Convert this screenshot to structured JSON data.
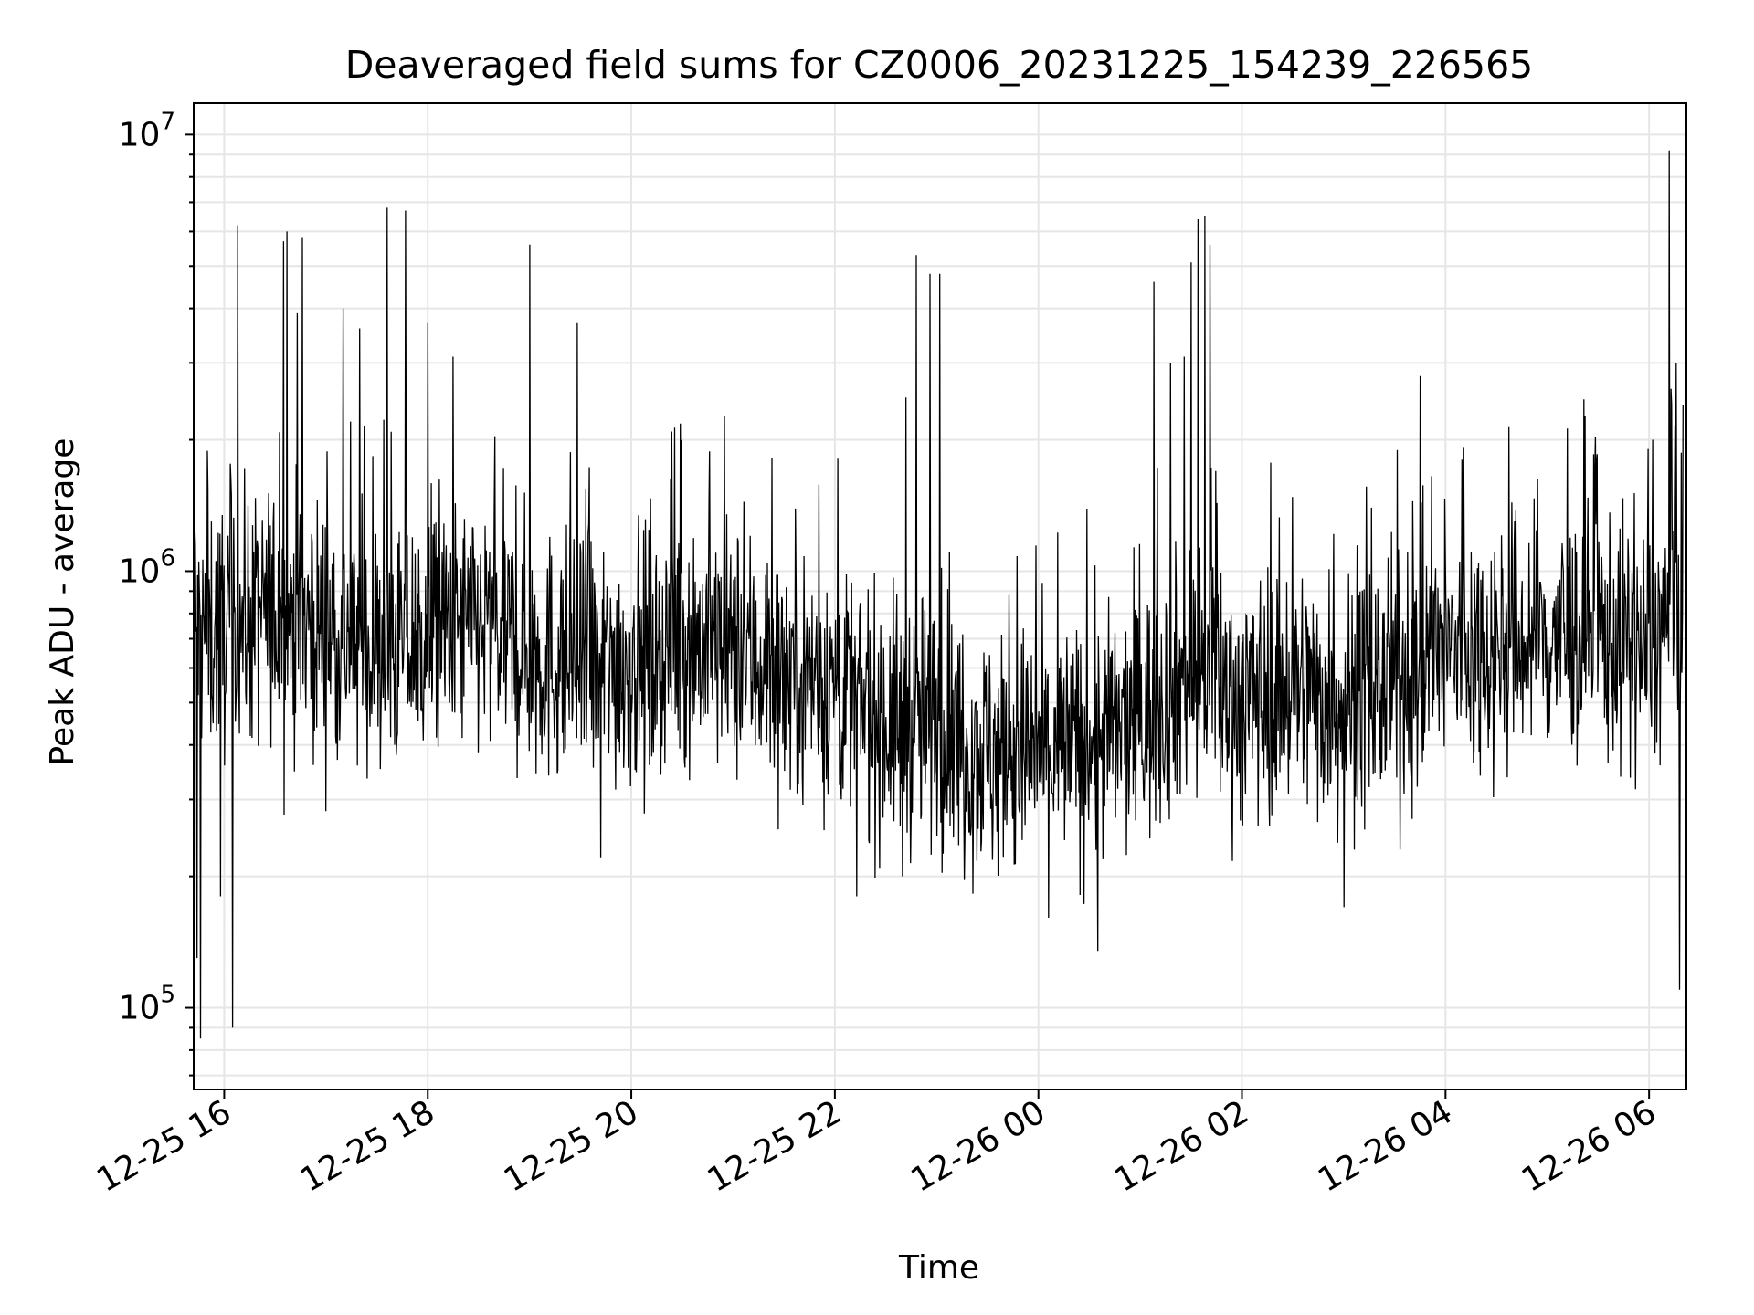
{
  "chart_data": {
    "type": "line",
    "title": "Deaveraged field sums for CZ0006_20231225_154239_226565",
    "xlabel": "Time",
    "ylabel": "Peak ADU - average",
    "x_start": "2023-12-25 15:42:39",
    "x_end": "2023-12-26 06:20:00",
    "xlim": [
      "2023-12-25 15:42",
      "2023-12-26 06:22"
    ],
    "ylim": [
      65000,
      11800000
    ],
    "yscale": "log",
    "grid": true,
    "line_color": "#000000",
    "grid_color": "#e6e6e6",
    "x_ticks": [
      {
        "label": "12-25 16",
        "time": "2023-12-25 16:00"
      },
      {
        "label": "12-25 18",
        "time": "2023-12-25 18:00"
      },
      {
        "label": "12-25 20",
        "time": "2023-12-25 20:00"
      },
      {
        "label": "12-25 22",
        "time": "2023-12-25 22:00"
      },
      {
        "label": "12-26 00",
        "time": "2023-12-26 00:00"
      },
      {
        "label": "12-26 02",
        "time": "2023-12-26 02:00"
      },
      {
        "label": "12-26 04",
        "time": "2023-12-26 04:00"
      },
      {
        "label": "12-26 06",
        "time": "2023-12-26 06:00"
      }
    ],
    "y_ticks": [
      {
        "base": "10",
        "exp": "5",
        "value": 100000
      },
      {
        "base": "10",
        "exp": "6",
        "value": 1000000
      },
      {
        "base": "10",
        "exp": "7",
        "value": 10000000
      }
    ],
    "series": [
      {
        "baseline": [
          [
            "2023-12-25 15:43",
            700000
          ],
          [
            "2023-12-25 16:00",
            750000
          ],
          [
            "2023-12-25 16:30",
            800000
          ],
          [
            "2023-12-25 17:00",
            750000
          ],
          [
            "2023-12-25 17:30",
            650000
          ],
          [
            "2023-12-25 18:00",
            700000
          ],
          [
            "2023-12-25 18:30",
            750000
          ],
          [
            "2023-12-25 19:00",
            650000
          ],
          [
            "2023-12-25 19:30",
            600000
          ],
          [
            "2023-12-25 20:00",
            620000
          ],
          [
            "2023-12-25 20:30",
            700000
          ],
          [
            "2023-12-25 21:00",
            650000
          ],
          [
            "2023-12-25 21:30",
            600000
          ],
          [
            "2023-12-25 22:00",
            550000
          ],
          [
            "2023-12-25 22:30",
            450000
          ],
          [
            "2023-12-25 23:00",
            450000
          ],
          [
            "2023-12-25 23:30",
            380000
          ],
          [
            "2023-12-26 00:00",
            380000
          ],
          [
            "2023-12-26 00:30",
            400000
          ],
          [
            "2023-12-26 01:00",
            450000
          ],
          [
            "2023-12-26 01:30",
            600000
          ],
          [
            "2023-12-26 02:00",
            500000
          ],
          [
            "2023-12-26 02:30",
            550000
          ],
          [
            "2023-12-26 03:00",
            500000
          ],
          [
            "2023-12-26 03:30",
            550000
          ],
          [
            "2023-12-26 04:00",
            650000
          ],
          [
            "2023-12-26 04:30",
            680000
          ],
          [
            "2023-12-26 05:00",
            700000
          ],
          [
            "2023-12-26 05:30",
            720000
          ],
          [
            "2023-12-26 06:00",
            650000
          ],
          [
            "2023-12-26 06:20",
            900000
          ]
        ],
        "spikes": [
          [
            "2023-12-25 16:08",
            6200000
          ],
          [
            "2023-12-25 15:58",
            3200000
          ],
          [
            "2023-12-25 16:35",
            5700000
          ],
          [
            "2023-12-25 16:37",
            6000000
          ],
          [
            "2023-12-25 16:46",
            5800000
          ],
          [
            "2023-12-25 16:43",
            3900000
          ],
          [
            "2023-12-25 17:10",
            4000000
          ],
          [
            "2023-12-25 17:36",
            6800000
          ],
          [
            "2023-12-25 17:47",
            6700000
          ],
          [
            "2023-12-25 17:20",
            3600000
          ],
          [
            "2023-12-25 18:00",
            3700000
          ],
          [
            "2023-12-25 18:15",
            3100000
          ],
          [
            "2023-12-25 19:00",
            5600000
          ],
          [
            "2023-12-25 19:28",
            3700000
          ],
          [
            "2023-12-25 22:48",
            5300000
          ],
          [
            "2023-12-25 22:56",
            4800000
          ],
          [
            "2023-12-25 23:02",
            4800000
          ],
          [
            "2023-12-25 22:42",
            2500000
          ],
          [
            "2023-12-26 01:08",
            4600000
          ],
          [
            "2023-12-26 01:18",
            3000000
          ],
          [
            "2023-12-26 01:26",
            3100000
          ],
          [
            "2023-12-26 01:30",
            5100000
          ],
          [
            "2023-12-26 01:34",
            6400000
          ],
          [
            "2023-12-26 01:38",
            6500000
          ],
          [
            "2023-12-26 01:41",
            5600000
          ],
          [
            "2023-12-26 03:45",
            2800000
          ],
          [
            "2023-12-26 06:02",
            2000000
          ],
          [
            "2023-12-26 06:12",
            9200000
          ],
          [
            "2023-12-26 06:16",
            3000000
          ],
          [
            "2023-12-26 06:20",
            2400000
          ]
        ],
        "dips": [
          [
            "2023-12-25 15:46",
            85000
          ],
          [
            "2023-12-25 16:05",
            90000
          ],
          [
            "2023-12-25 15:44",
            130000
          ],
          [
            "2023-12-25 15:58",
            180000
          ],
          [
            "2023-12-25 19:42",
            220000
          ],
          [
            "2023-12-25 22:13",
            180000
          ],
          [
            "2023-12-25 22:40",
            200000
          ],
          [
            "2023-12-26 00:35",
            135000
          ],
          [
            "2023-12-26 03:00",
            170000
          ],
          [
            "2023-12-26 06:18",
            110000
          ]
        ]
      }
    ]
  }
}
